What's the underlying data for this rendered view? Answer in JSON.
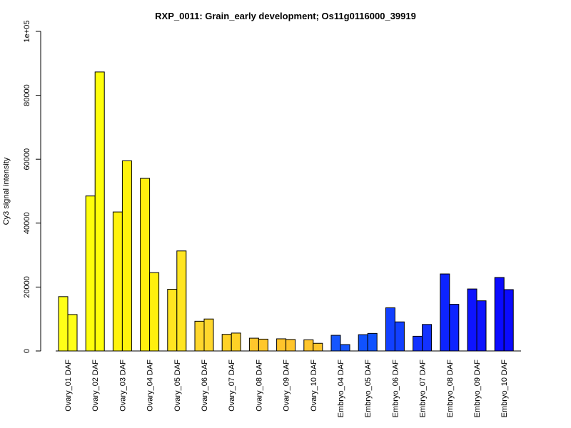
{
  "chart_data": {
    "type": "bar",
    "title": "RXP_0011: Grain_early development; Os11g0116000_39919",
    "xlabel": "",
    "ylabel": "Cy3 signal intensity",
    "ylim": [
      0,
      100000
    ],
    "yticks": [
      0,
      20000,
      40000,
      60000,
      80000,
      100000
    ],
    "ytick_labels": [
      "0",
      "20000",
      "40000",
      "60000",
      "80000",
      "1e+05"
    ],
    "grid": false,
    "legend": "none",
    "categories": [
      "Ovary_01 DAF",
      "Ovary_02 DAF",
      "Ovary_03 DAF",
      "Ovary_04 DAF",
      "Ovary_05 DAF",
      "Ovary_06 DAF",
      "Ovary_07 DAF",
      "Ovary_08 DAF",
      "Ovary_09 DAF",
      "Ovary_10 DAF",
      "Embryo_04 DAF",
      "Embryo_05 DAF",
      "Embryo_06 DAF",
      "Embryo_07 DAF",
      "Embryo_08 DAF",
      "Embryo_09 DAF",
      "Embryo_10 DAF"
    ],
    "series": [
      {
        "values": [
          17000,
          48500,
          43500,
          54000,
          19300,
          9300,
          5200,
          4000,
          3800,
          3500,
          4900,
          5100,
          13500,
          4600,
          24100,
          19400,
          23000
        ]
      },
      {
        "values": [
          11400,
          87300,
          59500,
          24500,
          31300,
          10000,
          5600,
          3700,
          3600,
          2400,
          2000,
          5500,
          9100,
          8300,
          14600,
          15700,
          19200
        ]
      }
    ],
    "colors": [
      "#FFFF17",
      "#FFFF0B",
      "#FFF30D",
      "#FFF00E",
      "#FFE521",
      "#FFD72D",
      "#FFD226",
      "#FFC72C",
      "#FFC52B",
      "#FFC52B",
      "#1656FF",
      "#1052FF",
      "#1240FF",
      "#1332FF",
      "#0D24FF",
      "#0E14FF",
      "#0B0BFF"
    ]
  }
}
